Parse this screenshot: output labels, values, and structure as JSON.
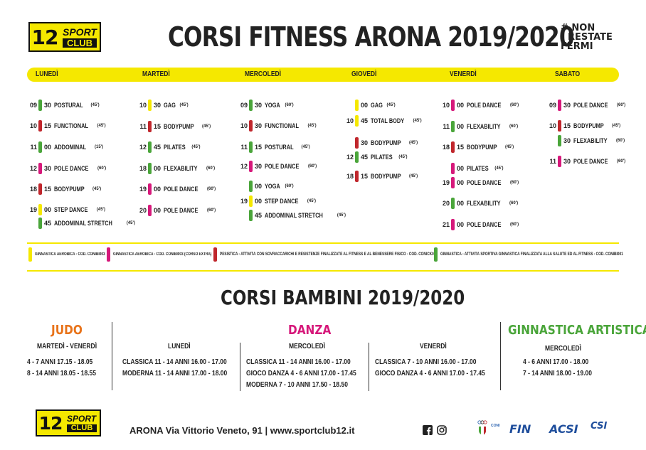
{
  "header": {
    "logo_num": "12",
    "logo_sport": "SPORT",
    "logo_club": "CLUB",
    "title": "CORSI FITNESS ARONA 2019/2020",
    "hashtag": [
      "# NON",
      "RESTATE",
      "FERMI"
    ]
  },
  "days": [
    "LUNEDÌ",
    "MARTEDÌ",
    "MERCOLEDÌ",
    "GIOVEDÌ",
    "VENERDÌ",
    "SABATO"
  ],
  "schedule": {
    "lunedi": [
      {
        "h": "09",
        "m": "30",
        "n": "POSTURAL",
        "d": "(45')",
        "c": "green"
      },
      {
        "h": "10",
        "m": "15",
        "n": "FUNCTIONAL",
        "d": "(45')",
        "c": "red"
      },
      {
        "h": "11",
        "m": "00",
        "n": "ADDOMINAL",
        "d": "(15')",
        "c": "green"
      },
      {
        "h": "12",
        "m": "30",
        "n": "POLE DANCE",
        "d": "(60')",
        "c": "pink"
      },
      {
        "h": "18",
        "m": "15",
        "n": "BODYPUMP",
        "d": "(45')",
        "c": "red"
      },
      {
        "h": "19",
        "m": "00",
        "n": "STEP DANCE",
        "d": "(45')",
        "c": "yellow"
      },
      {
        "h": "",
        "m": "45",
        "n": "ADDOMINAL STRETCH",
        "d": "(45')",
        "c": "green"
      }
    ],
    "martedi": [
      {
        "h": "10",
        "m": "30",
        "n": "GAG",
        "d": "(45')",
        "c": "yellow"
      },
      {
        "h": "11",
        "m": "15",
        "n": "BODYPUMP",
        "d": "(45')",
        "c": "red"
      },
      {
        "h": "12",
        "m": "45",
        "n": "PILATES",
        "d": "(45')",
        "c": "green"
      },
      {
        "h": "18",
        "m": "00",
        "n": "FLEXABILITY",
        "d": "(60')",
        "c": "green"
      },
      {
        "h": "19",
        "m": "00",
        "n": "POLE DANCE",
        "d": "(60')",
        "c": "pink"
      },
      {
        "h": "20",
        "m": "00",
        "n": "POLE DANCE",
        "d": "(60')",
        "c": "pink"
      }
    ],
    "mercoledi": [
      {
        "h": "09",
        "m": "30",
        "n": "YOGA",
        "d": "(60')",
        "c": "green"
      },
      {
        "h": "10",
        "m": "30",
        "n": "FUNCTIONAL",
        "d": "(45')",
        "c": "red"
      },
      {
        "h": "11",
        "m": "15",
        "n": "POSTURAL",
        "d": "(45')",
        "c": "green"
      },
      {
        "h": "12",
        "m": "30",
        "n": "POLE DANCE",
        "d": "(60')",
        "c": "pink"
      },
      {
        "h": "",
        "m": "00",
        "n": "YOGA",
        "d": "(60')",
        "c": "green"
      },
      {
        "h": "19",
        "m": "00",
        "n": "STEP DANCE",
        "d": "(45')",
        "c": "yellow"
      },
      {
        "h": "",
        "m": "45",
        "n": "ADDOMINAL STRETCH",
        "d": "(45')",
        "c": "green"
      }
    ],
    "giovedi": [
      {
        "h": "",
        "m": "00",
        "n": "GAG",
        "d": "(45')",
        "c": "yellow"
      },
      {
        "h": "10",
        "m": "45",
        "n": "TOTAL BODY",
        "d": "(45')",
        "c": "yellow"
      },
      {
        "h": "",
        "m": "30",
        "n": "BODYPUMP",
        "d": "(45')",
        "c": "red"
      },
      {
        "h": "12",
        "m": "45",
        "n": "PILATES",
        "d": "(45')",
        "c": "green"
      },
      {
        "h": "18",
        "m": "15",
        "n": "BODYPUMP",
        "d": "(45')",
        "c": "red"
      }
    ],
    "venerdi": [
      {
        "h": "10",
        "m": "00",
        "n": "POLE DANCE",
        "d": "(60')",
        "c": "pink"
      },
      {
        "h": "11",
        "m": "00",
        "n": "FLEXABILITY",
        "d": "(60')",
        "c": "green"
      },
      {
        "h": "18",
        "m": "15",
        "n": "BODYPUMP",
        "d": "(45')",
        "c": "red"
      },
      {
        "h": "",
        "m": "00",
        "n": "PILATES",
        "d": "(45')",
        "c": "pink"
      },
      {
        "h": "19",
        "m": "00",
        "n": "POLE DANCE",
        "d": "(60')",
        "c": "pink"
      },
      {
        "h": "20",
        "m": "00",
        "n": "FLEXABILITY",
        "d": "(60')",
        "c": "green"
      },
      {
        "h": "21",
        "m": "00",
        "n": "POLE DANCE",
        "d": "(60')",
        "c": "pink"
      }
    ],
    "sabato": [
      {
        "h": "09",
        "m": "30",
        "n": "POLE DANCE",
        "d": "(60')",
        "c": "pink"
      },
      {
        "h": "10",
        "m": "15",
        "n": "BODYPUMP",
        "d": "(45')",
        "c": "red"
      },
      {
        "h": "",
        "m": "30",
        "n": "FLEXABILITY",
        "d": "(60')",
        "c": "green"
      },
      {
        "h": "11",
        "m": "30",
        "n": "POLE DANCE",
        "d": "(60')",
        "c": "pink"
      }
    ]
  },
  "legend": [
    {
      "c": "yellow",
      "t": "GINNASTICA AEROBICA - COD. CONIBI003"
    },
    {
      "c": "pink",
      "t": "GINNASTICA AEROBICA - COD. CONIBI003 (CORSO EXTRA)"
    },
    {
      "c": "red",
      "t": "PESISTICA - ATTIVITÀ CON SOVRACCARICHI E RESISTENZE FINALIZZATE AL FITNESS E AL BENESSERE FISICO - COD. CONICK000"
    },
    {
      "c": "green",
      "t": "GINNASTICA - ATTIVITÀ SPORTIVA GINNASTICA FINALIZZATA ALLA SALUTE ED AL FITNESS - COD. CONIBI001"
    }
  ],
  "kids": {
    "title": "CORSI BAMBINI 2019/2020",
    "judo": {
      "title": "JUDO",
      "days": "MARTEDÌ - VENERDÌ",
      "rows": [
        "4 - 7 ANNI  17.15 - 18.05",
        "8 - 14 ANNI 18.05 - 18.55"
      ]
    },
    "danza": {
      "title": "DANZA",
      "lunedi": {
        "day": "LUNEDÌ",
        "rows": [
          "CLASSICA  11 - 14 ANNI  16.00 - 17.00",
          "MODERNA 11 - 14 ANNI  17.00 - 18.00"
        ]
      },
      "mercoledi": {
        "day": "MERCOLEDÌ",
        "rows": [
          "CLASSICA       11 - 14 ANNI 16.00 - 17.00",
          "GIOCO DANZA  4 - 6  ANNI   17.00 - 17.45",
          "MODERNA        7 - 10 ANNI 17.50 - 18.50"
        ]
      },
      "venerdi": {
        "day": "VENERDÌ",
        "rows": [
          "CLASSICA         7 - 10 ANNI 16.00 - 17.00",
          "GIOCO DANZA 4 - 6 ANNI     17.00 - 17.45"
        ]
      }
    },
    "ginnastica": {
      "title": "GINNASTICA ARTISTICA",
      "day": "MERCOLEDÌ",
      "rows": [
        "4 - 6  ANNI  17.00 - 18.00",
        "7 - 14  ANNI  18.00 - 19.00"
      ]
    }
  },
  "footer": {
    "city": "ARONA",
    "address": " Via Vittorio Veneto, 91 | www.sportclub12.it",
    "sponsors": [
      "CONI",
      "FIN",
      "ACSI",
      "CSI"
    ]
  },
  "colors": {
    "yellow": "#f5e800",
    "pink": "#d6187a",
    "red": "#c0262c",
    "green": "#4aa53a",
    "judo": "#e8731a",
    "danza": "#d6187a",
    "ginnastica": "#4aa53a"
  }
}
